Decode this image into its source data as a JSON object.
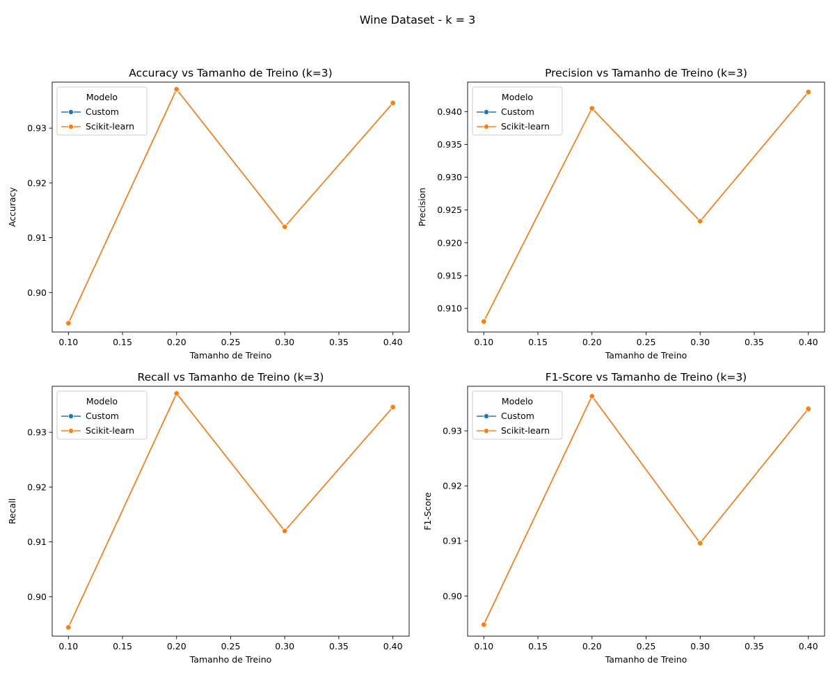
{
  "suptitle": "Wine Dataset - k = 3",
  "colors": {
    "custom": "#1f77b4",
    "sklearn": "#ff7f0e",
    "legend_border": "#cccccc"
  },
  "chart_data": [
    {
      "type": "line",
      "title": "Accuracy vs Tamanho de Treino (k=3)",
      "xlabel": "Tamanho de Treino",
      "ylabel": "Accuracy",
      "x": [
        0.1,
        0.2,
        0.3,
        0.4
      ],
      "xlim": [
        0.085,
        0.415
      ],
      "ylim": [
        0.8928,
        0.9384
      ],
      "xticks": [
        0.1,
        0.15,
        0.2,
        0.25,
        0.3,
        0.35,
        0.4
      ],
      "yticks": [
        0.9,
        0.91,
        0.92,
        0.93
      ],
      "xtick_decimals": 2,
      "ytick_decimals": 2,
      "grid": false,
      "legend": {
        "title": "Modelo",
        "placement": "upper left"
      },
      "series": [
        {
          "name": "Custom",
          "values": [
            0.8944,
            0.9371,
            0.912,
            0.9346
          ]
        },
        {
          "name": "Scikit-learn",
          "values": [
            0.8944,
            0.9371,
            0.912,
            0.9346
          ]
        }
      ]
    },
    {
      "type": "line",
      "title": "Precision vs Tamanho de Treino (k=3)",
      "xlabel": "Tamanho de Treino",
      "ylabel": "Precision",
      "x": [
        0.1,
        0.2,
        0.3,
        0.4
      ],
      "xlim": [
        0.085,
        0.415
      ],
      "ylim": [
        0.9064,
        0.9445
      ],
      "xticks": [
        0.1,
        0.15,
        0.2,
        0.25,
        0.3,
        0.35,
        0.4
      ],
      "yticks": [
        0.91,
        0.915,
        0.92,
        0.925,
        0.93,
        0.935,
        0.94
      ],
      "xtick_decimals": 2,
      "ytick_decimals": 3,
      "grid": false,
      "legend": {
        "title": "Modelo",
        "placement": "upper left"
      },
      "series": [
        {
          "name": "Custom",
          "values": [
            0.908,
            0.9405,
            0.9233,
            0.943
          ]
        },
        {
          "name": "Scikit-learn",
          "values": [
            0.908,
            0.9405,
            0.9233,
            0.943
          ]
        }
      ]
    },
    {
      "type": "line",
      "title": "Recall vs Tamanho de Treino (k=3)",
      "xlabel": "Tamanho de Treino",
      "ylabel": "Recall",
      "x": [
        0.1,
        0.2,
        0.3,
        0.4
      ],
      "xlim": [
        0.085,
        0.415
      ],
      "ylim": [
        0.8928,
        0.9384
      ],
      "xticks": [
        0.1,
        0.15,
        0.2,
        0.25,
        0.3,
        0.35,
        0.4
      ],
      "yticks": [
        0.9,
        0.91,
        0.92,
        0.93
      ],
      "xtick_decimals": 2,
      "ytick_decimals": 2,
      "grid": false,
      "legend": {
        "title": "Modelo",
        "placement": "upper left"
      },
      "series": [
        {
          "name": "Custom",
          "values": [
            0.8944,
            0.9371,
            0.912,
            0.9346
          ]
        },
        {
          "name": "Scikit-learn",
          "values": [
            0.8944,
            0.9371,
            0.912,
            0.9346
          ]
        }
      ]
    },
    {
      "type": "line",
      "title": "F1-Score vs Tamanho de Treino (k=3)",
      "xlabel": "Tamanho de Treino",
      "ylabel": "F1-Score",
      "x": [
        0.1,
        0.2,
        0.3,
        0.4
      ],
      "xlim": [
        0.085,
        0.415
      ],
      "ylim": [
        0.8927,
        0.9381
      ],
      "xticks": [
        0.1,
        0.15,
        0.2,
        0.25,
        0.3,
        0.35,
        0.4
      ],
      "yticks": [
        0.9,
        0.91,
        0.92,
        0.93
      ],
      "xtick_decimals": 2,
      "ytick_decimals": 2,
      "grid": false,
      "legend": {
        "title": "Modelo",
        "placement": "upper left"
      },
      "series": [
        {
          "name": "Custom",
          "values": [
            0.8948,
            0.9363,
            0.9096,
            0.934
          ]
        },
        {
          "name": "Scikit-learn",
          "values": [
            0.8948,
            0.9363,
            0.9096,
            0.934
          ]
        }
      ]
    }
  ]
}
